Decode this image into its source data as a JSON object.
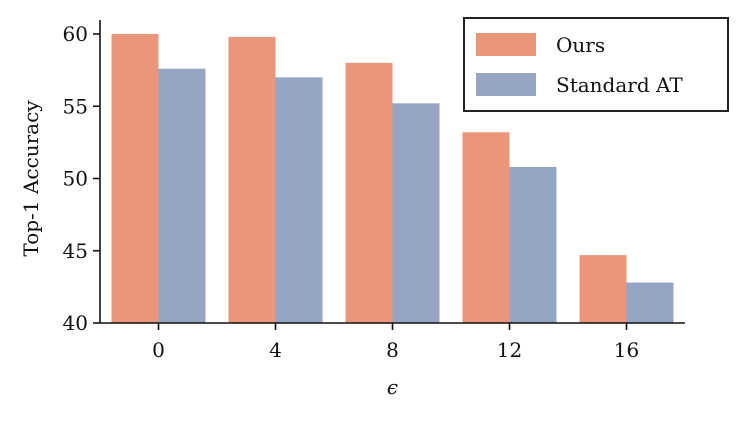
{
  "chart_data": {
    "type": "bar",
    "categories": [
      "0",
      "4",
      "8",
      "12",
      "16"
    ],
    "series": [
      {
        "name": "Ours",
        "values": [
          60.0,
          59.8,
          58.0,
          53.2,
          44.7
        ],
        "color": "#E9967A"
      },
      {
        "name": "Standard AT",
        "values": [
          57.6,
          57.0,
          55.2,
          50.8,
          42.8
        ],
        "color": "#96A5C4"
      }
    ],
    "xlabel": "ϵ",
    "ylabel": "Top-1 Accuracy",
    "ylim": [
      40,
      60
    ],
    "yticks": [
      40,
      45,
      50,
      55,
      60
    ],
    "grid": false,
    "legend_position": "top-right"
  }
}
